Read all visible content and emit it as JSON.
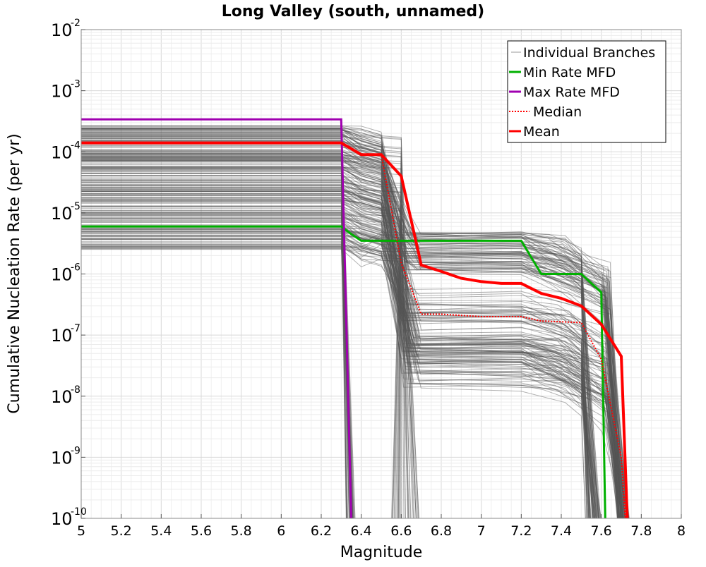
{
  "chart_data": {
    "type": "line",
    "title": "Long Valley (south, unnamed)",
    "xlabel": "Magnitude",
    "ylabel": "Cumulative Nucleation Rate (per yr)",
    "xlim": [
      5,
      8
    ],
    "ylim": [
      1e-10,
      0.01
    ],
    "yscale": "log",
    "grid": true,
    "legend_position": "top-right",
    "x_ticks": [
      "5",
      "5.2",
      "5.4",
      "5.6",
      "5.8",
      "6",
      "6.2",
      "6.4",
      "6.6",
      "6.8",
      "7",
      "7.2",
      "7.4",
      "7.6",
      "7.8",
      "8"
    ],
    "y_ticks": [
      {
        "base": "10",
        "exp": "-10"
      },
      {
        "base": "10",
        "exp": "-9"
      },
      {
        "base": "10",
        "exp": "-8"
      },
      {
        "base": "10",
        "exp": "-7"
      },
      {
        "base": "10",
        "exp": "-6"
      },
      {
        "base": "10",
        "exp": "-5"
      },
      {
        "base": "10",
        "exp": "-4"
      },
      {
        "base": "10",
        "exp": "-3"
      },
      {
        "base": "10",
        "exp": "-2"
      }
    ],
    "series": [
      {
        "name": "Min Rate MFD",
        "color": "#00b000",
        "style": "solid",
        "x": [
          5.0,
          6.3,
          6.35,
          6.4,
          7.2,
          7.3,
          7.5,
          7.6,
          7.62
        ],
        "y": [
          6e-06,
          6e-06,
          4.5e-06,
          3.5e-06,
          3.5e-06,
          1e-06,
          1e-06,
          5e-07,
          1e-10
        ]
      },
      {
        "name": "Max Rate MFD",
        "color": "#a000b0",
        "style": "solid",
        "x": [
          5.0,
          6.3,
          6.35
        ],
        "y": [
          0.00034,
          0.00034,
          1e-10
        ]
      },
      {
        "name": "Median",
        "color": "#ff0000",
        "style": "dotted",
        "x": [
          5.0,
          6.3,
          6.4,
          6.5,
          6.6,
          6.7,
          6.8,
          7.0,
          7.2,
          7.3,
          7.5,
          7.6,
          7.7,
          7.72
        ],
        "y": [
          0.00014,
          0.00014,
          9e-05,
          9e-05,
          1.5e-06,
          2.2e-07,
          2.2e-07,
          2e-07,
          2e-07,
          1.7e-07,
          1.6e-07,
          4e-08,
          1e-09,
          1e-10
        ]
      },
      {
        "name": "Mean",
        "color": "#ff0000",
        "style": "solid",
        "x": [
          5.0,
          6.3,
          6.4,
          6.5,
          6.6,
          6.7,
          6.8,
          6.9,
          7.0,
          7.1,
          7.2,
          7.3,
          7.4,
          7.5,
          7.6,
          7.7,
          7.73
        ],
        "y": [
          0.00014,
          0.00014,
          9e-05,
          9e-05,
          4e-05,
          1.4e-06,
          1.1e-06,
          8.5e-07,
          7.5e-07,
          7e-07,
          7e-07,
          4.8e-07,
          4e-07,
          3e-07,
          1.5e-07,
          4.5e-08,
          1e-10
        ]
      }
    ],
    "branches": {
      "name": "Individual Branches",
      "color": "#555555"
    }
  }
}
